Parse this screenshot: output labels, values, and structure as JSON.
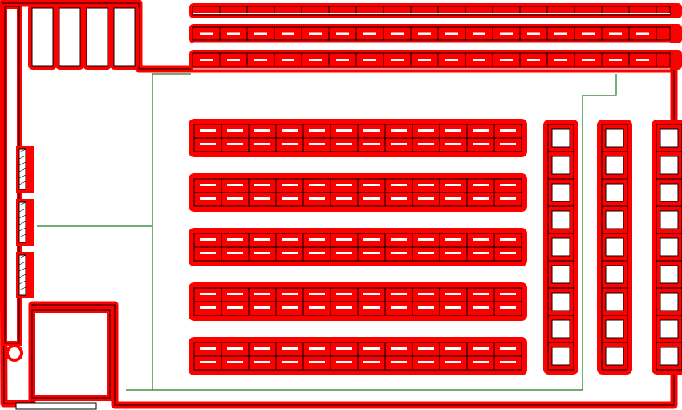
{
  "colors": {
    "background": "#ffffff",
    "highlight": "#ff0000",
    "outline": "#000000",
    "route": "#1f7a1f",
    "cell_fill": "#ffffff"
  },
  "floor_plan": {
    "top_rack_rows": 3,
    "top_rack_bays": 18,
    "horizontal_rack_rows": 5,
    "horizontal_rack_bays": 12,
    "vertical_rack_columns": 3,
    "vertical_rack_bays": 9,
    "entry_doors": 3,
    "corner_cells": 4,
    "route": "green path line"
  },
  "icons": {
    "rack": "shelf-rack-icon",
    "door": "door-icon",
    "route": "path-line-icon"
  }
}
